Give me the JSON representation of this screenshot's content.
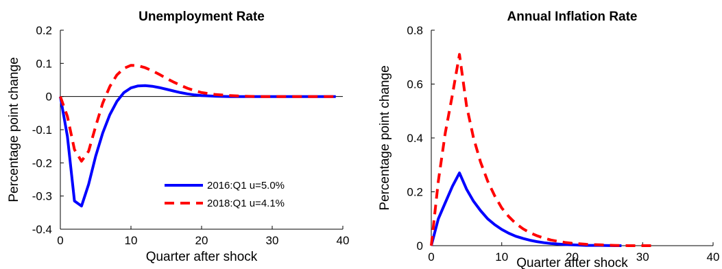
{
  "chart_data": [
    {
      "type": "line",
      "title": "Unemployment Rate",
      "xlabel": "Quarter after shock",
      "ylabel": "Percentage point change",
      "xlim": [
        0,
        40
      ],
      "ylim": [
        -0.4,
        0.2
      ],
      "xticks": [
        "0",
        "10",
        "20",
        "30",
        "40"
      ],
      "yticks": [
        "-0.4",
        "-0.3",
        "-0.2",
        "-0.1",
        "0",
        "0.1",
        "0.2"
      ],
      "zero_line": true,
      "legend_position": "bottom-right",
      "series": [
        {
          "name": "2016:Q1  u=5.0%",
          "color": "#0000ff",
          "style": "solid",
          "x": [
            0,
            1,
            2,
            3,
            4,
            5,
            6,
            7,
            8,
            9,
            10,
            11,
            12,
            13,
            14,
            15,
            16,
            17,
            18,
            19,
            20,
            22,
            24,
            26,
            28,
            30,
            32,
            34,
            36,
            39
          ],
          "y": [
            0,
            -0.12,
            -0.315,
            -0.33,
            -0.265,
            -0.18,
            -0.11,
            -0.055,
            -0.015,
            0.012,
            0.026,
            0.032,
            0.033,
            0.031,
            0.027,
            0.022,
            0.017,
            0.012,
            0.008,
            0.005,
            0.003,
            0.001,
            0,
            0,
            0,
            0,
            0,
            0,
            0,
            0
          ]
        },
        {
          "name": "2018:Q1  u=4.1%",
          "color": "#ff0000",
          "style": "dashed",
          "x": [
            0,
            1,
            2,
            3,
            4,
            5,
            6,
            7,
            8,
            9,
            10,
            11,
            12,
            13,
            14,
            15,
            16,
            17,
            18,
            19,
            20,
            22,
            24,
            26,
            28,
            30,
            32,
            34,
            36,
            39
          ],
          "y": [
            0,
            -0.06,
            -0.16,
            -0.195,
            -0.165,
            -0.09,
            -0.02,
            0.03,
            0.065,
            0.085,
            0.094,
            0.093,
            0.087,
            0.078,
            0.067,
            0.055,
            0.044,
            0.034,
            0.025,
            0.018,
            0.012,
            0.006,
            0.003,
            0.001,
            0,
            0,
            0,
            0,
            0,
            0
          ]
        }
      ]
    },
    {
      "type": "line",
      "title": "Annual Inflation Rate",
      "xlabel": "Quarter after shock",
      "ylabel": "Percentage point change",
      "xlim": [
        0,
        40
      ],
      "ylim": [
        0,
        0.8
      ],
      "xticks": [
        "0",
        "10",
        "20",
        "30",
        "40"
      ],
      "yticks": [
        "0",
        "0.2",
        "0.4",
        "0.6",
        "0.8"
      ],
      "series": [
        {
          "name": "2016:Q1  u=5.0%",
          "color": "#0000ff",
          "style": "solid",
          "x": [
            0,
            1,
            2,
            3,
            4,
            5,
            6,
            7,
            8,
            9,
            10,
            11,
            12,
            13,
            14,
            15,
            16,
            17,
            18,
            19,
            20,
            22,
            24,
            26,
            27
          ],
          "y": [
            0,
            0.1,
            0.16,
            0.22,
            0.27,
            0.21,
            0.165,
            0.13,
            0.1,
            0.078,
            0.06,
            0.046,
            0.035,
            0.027,
            0.02,
            0.015,
            0.011,
            0.008,
            0.006,
            0.004,
            0.003,
            0.001,
            0.001,
            0,
            0
          ]
        },
        {
          "name": "2018:Q1  u=4.1%",
          "color": "#ff0000",
          "style": "dashed",
          "x": [
            0,
            1,
            2,
            3,
            4,
            5,
            6,
            7,
            8,
            9,
            10,
            11,
            12,
            13,
            14,
            15,
            16,
            17,
            18,
            19,
            20,
            22,
            24,
            26,
            28,
            30,
            32
          ],
          "y": [
            0,
            0.24,
            0.42,
            0.56,
            0.71,
            0.52,
            0.4,
            0.31,
            0.24,
            0.185,
            0.14,
            0.108,
            0.082,
            0.063,
            0.048,
            0.037,
            0.028,
            0.021,
            0.016,
            0.012,
            0.009,
            0.005,
            0.003,
            0.001,
            0,
            0,
            0
          ]
        }
      ]
    }
  ]
}
